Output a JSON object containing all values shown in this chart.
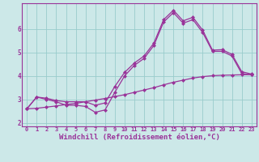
{
  "xlabel": "Windchill (Refroidissement éolien,°C)",
  "background_color": "#cce8e8",
  "line_color": "#993399",
  "grid_color": "#99cccc",
  "x": [
    0,
    1,
    2,
    3,
    4,
    5,
    6,
    7,
    8,
    9,
    10,
    11,
    12,
    13,
    14,
    15,
    16,
    17,
    18,
    19,
    20,
    21,
    22,
    23
  ],
  "y_main": [
    2.6,
    3.1,
    3.0,
    2.9,
    2.75,
    2.75,
    2.7,
    2.45,
    2.55,
    3.3,
    4.0,
    4.45,
    4.75,
    5.3,
    6.3,
    6.7,
    6.25,
    6.4,
    5.85,
    5.05,
    5.05,
    4.85,
    4.1,
    4.05
  ],
  "y_upper": [
    2.6,
    3.1,
    3.05,
    2.95,
    2.9,
    2.9,
    2.9,
    2.75,
    2.85,
    3.55,
    4.15,
    4.55,
    4.85,
    5.4,
    6.4,
    6.8,
    6.35,
    6.5,
    5.95,
    5.1,
    5.12,
    4.92,
    4.18,
    4.08
  ],
  "y_lower": [
    2.6,
    2.62,
    2.67,
    2.72,
    2.78,
    2.83,
    2.9,
    2.97,
    3.04,
    3.12,
    3.2,
    3.3,
    3.4,
    3.5,
    3.62,
    3.73,
    3.82,
    3.91,
    3.97,
    4.01,
    4.03,
    4.04,
    4.05,
    4.06
  ],
  "ylim": [
    1.85,
    7.1
  ],
  "xlim": [
    -0.5,
    23.5
  ],
  "yticks": [
    2,
    3,
    4,
    5,
    6
  ],
  "xticks": [
    0,
    1,
    2,
    3,
    4,
    5,
    6,
    7,
    8,
    9,
    10,
    11,
    12,
    13,
    14,
    15,
    16,
    17,
    18,
    19,
    20,
    21,
    22,
    23
  ],
  "xlabel_fontsize": 6.5,
  "tick_fontsize_x": 5.0,
  "tick_fontsize_y": 5.5
}
